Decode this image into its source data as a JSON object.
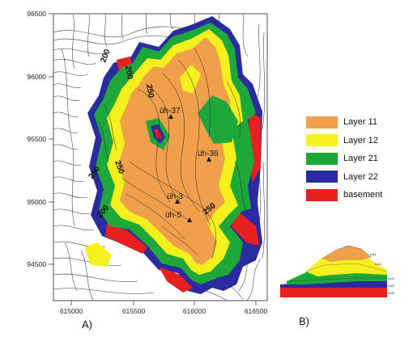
{
  "map": {
    "y_ticks": [
      "96500",
      "96000",
      "95500",
      "95000",
      "94500"
    ],
    "x_ticks": [
      "615000",
      "615500",
      "616000",
      "616500"
    ],
    "contour_labels": [
      "200",
      "200",
      "250",
      "250",
      "250",
      "200",
      "250"
    ],
    "wells": [
      "üh-37",
      "üh-36",
      "üh-3",
      "üh-5"
    ]
  },
  "legend": {
    "items": [
      {
        "label": "Layer 11",
        "color": "#F0A04B"
      },
      {
        "label": "Layer 12",
        "color": "#F5F01E"
      },
      {
        "label": "Layer 21",
        "color": "#1FA83A"
      },
      {
        "label": "Layer 22",
        "color": "#2B2BA0"
      },
      {
        "label": "basement",
        "color": "#E8201E"
      }
    ]
  },
  "cross_section": {
    "labels": [
      "ro11",
      "ro12",
      "ro21",
      "ro22",
      "ro30"
    ]
  },
  "panels": {
    "a": "A)",
    "b": "B)"
  }
}
